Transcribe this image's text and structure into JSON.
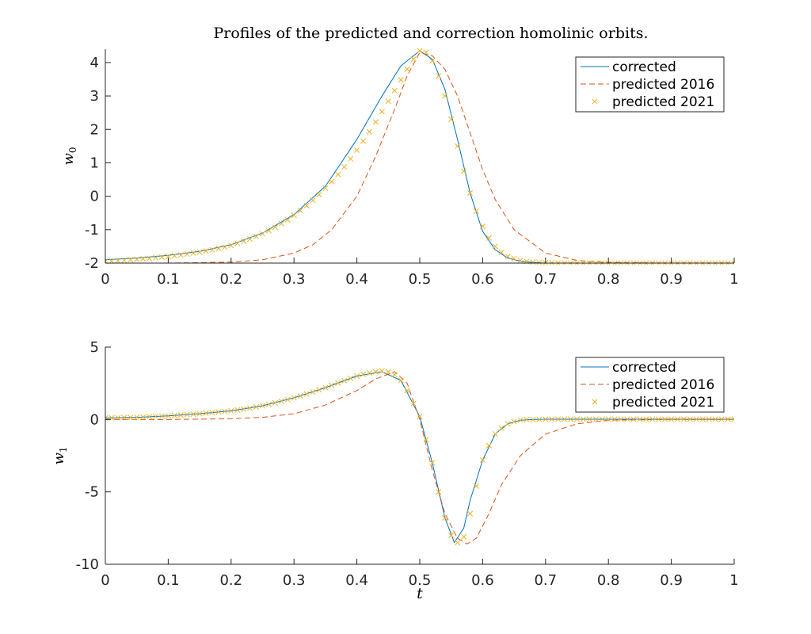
{
  "title": "Profiles of the predicted and correction homolinic orbits.",
  "colors": {
    "corrected": "#0072BD",
    "predicted_2016": "#D95319",
    "predicted_2021": "#EDB120",
    "axis": "#262626"
  },
  "chart_data": [
    {
      "type": "line",
      "ylabel": "w0",
      "xlabel": "",
      "xlim": [
        0,
        1
      ],
      "ylim": [
        -2,
        4.4
      ],
      "xticks": [
        "0",
        "0.1",
        "0.2",
        "0.3",
        "0.4",
        "0.5",
        "0.6",
        "0.7",
        "0.8",
        "0.9",
        "1"
      ],
      "yticks": [
        "-2",
        "-1",
        "0",
        "1",
        "2",
        "3",
        "4"
      ],
      "legend_position": "top-right",
      "series": [
        {
          "name": "corrected",
          "style": "solid",
          "x": [
            0,
            0.05,
            0.1,
            0.15,
            0.2,
            0.25,
            0.3,
            0.35,
            0.4,
            0.44,
            0.47,
            0.5,
            0.52,
            0.54,
            0.56,
            0.58,
            0.6,
            0.62,
            0.64,
            0.66,
            0.68,
            0.7,
            0.75,
            0.8,
            0.9,
            1.0
          ],
          "y": [
            -1.9,
            -1.85,
            -1.77,
            -1.65,
            -1.45,
            -1.1,
            -0.55,
            0.3,
            1.7,
            3.0,
            3.9,
            4.35,
            4.1,
            3.2,
            1.7,
            0.1,
            -1.05,
            -1.6,
            -1.85,
            -1.94,
            -1.98,
            -2.0,
            -2.0,
            -2.0,
            -2.0,
            -2.0
          ]
        },
        {
          "name": "predicted 2016",
          "style": "dashed",
          "x": [
            0,
            0.1,
            0.2,
            0.25,
            0.3,
            0.33,
            0.36,
            0.4,
            0.43,
            0.46,
            0.48,
            0.5,
            0.52,
            0.54,
            0.56,
            0.58,
            0.6,
            0.62,
            0.65,
            0.7,
            0.75,
            0.8,
            0.9,
            1.0
          ],
          "y": [
            -2.0,
            -2.0,
            -1.97,
            -1.9,
            -1.7,
            -1.45,
            -1.0,
            0.0,
            1.2,
            2.6,
            3.6,
            4.3,
            4.2,
            3.8,
            3.0,
            1.9,
            0.8,
            -0.1,
            -1.0,
            -1.7,
            -1.92,
            -1.98,
            -2.0,
            -2.0
          ]
        },
        {
          "name": "predicted 2021",
          "style": "markers",
          "x": [
            0,
            0.01,
            0.02,
            0.03,
            0.04,
            0.05,
            0.06,
            0.07,
            0.08,
            0.09,
            0.1,
            0.11,
            0.12,
            0.13,
            0.14,
            0.15,
            0.16,
            0.17,
            0.18,
            0.19,
            0.2,
            0.21,
            0.22,
            0.23,
            0.24,
            0.25,
            0.26,
            0.27,
            0.28,
            0.29,
            0.3,
            0.31,
            0.32,
            0.33,
            0.34,
            0.35,
            0.36,
            0.37,
            0.38,
            0.39,
            0.4,
            0.41,
            0.42,
            0.43,
            0.44,
            0.45,
            0.46,
            0.47,
            0.48,
            0.49,
            0.5,
            0.51,
            0.52,
            0.53,
            0.54,
            0.55,
            0.56,
            0.57,
            0.58,
            0.59,
            0.6,
            0.61,
            0.62,
            0.63,
            0.64,
            0.65,
            0.66,
            0.67,
            0.68,
            0.69,
            0.7,
            0.71,
            0.72,
            0.73,
            0.74,
            0.75,
            0.76,
            0.77,
            0.78,
            0.79,
            0.8,
            0.81,
            0.82,
            0.83,
            0.84,
            0.85,
            0.86,
            0.87,
            0.88,
            0.89,
            0.9,
            0.91,
            0.92,
            0.93,
            0.94,
            0.95,
            0.96,
            0.97,
            0.98,
            0.99,
            1.0
          ],
          "y": [
            -1.95,
            -1.94,
            -1.93,
            -1.92,
            -1.9,
            -1.89,
            -1.87,
            -1.86,
            -1.84,
            -1.82,
            -1.8,
            -1.78,
            -1.76,
            -1.73,
            -1.7,
            -1.67,
            -1.64,
            -1.6,
            -1.56,
            -1.52,
            -1.47,
            -1.41,
            -1.35,
            -1.28,
            -1.2,
            -1.12,
            -1.03,
            -0.93,
            -0.82,
            -0.7,
            -0.57,
            -0.43,
            -0.28,
            -0.12,
            0.05,
            0.24,
            0.44,
            0.65,
            0.88,
            1.12,
            1.38,
            1.65,
            1.93,
            2.22,
            2.53,
            2.84,
            3.16,
            3.48,
            3.8,
            4.1,
            4.35,
            4.3,
            4.05,
            3.6,
            3.0,
            2.3,
            1.5,
            0.75,
            0.1,
            -0.45,
            -0.9,
            -1.25,
            -1.5,
            -1.68,
            -1.8,
            -1.87,
            -1.92,
            -1.95,
            -1.97,
            -1.98,
            -1.99,
            -1.99,
            -2.0,
            -2.0,
            -2.0,
            -2.0,
            -2.0,
            -2.0,
            -2.0,
            -2.0,
            -2.0,
            -2.0,
            -2.0,
            -2.0,
            -2.0,
            -2.0,
            -2.0,
            -2.0,
            -2.0,
            -2.0,
            -2.0,
            -2.0,
            -2.0,
            -2.0,
            -2.0,
            -2.0,
            -2.0,
            -2.0,
            -2.0,
            -2.0,
            -2.0
          ]
        }
      ]
    },
    {
      "type": "line",
      "ylabel": "w1",
      "xlabel": "t",
      "xlim": [
        0,
        1
      ],
      "ylim": [
        -10,
        5
      ],
      "xticks": [
        "0",
        "0.1",
        "0.2",
        "0.3",
        "0.4",
        "0.5",
        "0.6",
        "0.7",
        "0.8",
        "0.9",
        "1"
      ],
      "yticks": [
        "5",
        "0",
        "-5",
        "-10"
      ],
      "legend_position": "top-right",
      "series": [
        {
          "name": "corrected",
          "style": "solid",
          "x": [
            0,
            0.05,
            0.1,
            0.15,
            0.2,
            0.25,
            0.3,
            0.35,
            0.4,
            0.44,
            0.47,
            0.5,
            0.52,
            0.54,
            0.555,
            0.57,
            0.58,
            0.6,
            0.62,
            0.64,
            0.66,
            0.68,
            0.7,
            0.75,
            0.8,
            0.9,
            1.0
          ],
          "y": [
            0.1,
            0.15,
            0.25,
            0.4,
            0.6,
            0.95,
            1.5,
            2.2,
            3.0,
            3.3,
            2.7,
            0.2,
            -3.0,
            -6.8,
            -8.5,
            -7.5,
            -5.6,
            -2.8,
            -1.0,
            -0.3,
            -0.05,
            0.0,
            0.02,
            0.02,
            0.02,
            0.02,
            0.02
          ]
        },
        {
          "name": "predicted 2016",
          "style": "dashed",
          "x": [
            0,
            0.1,
            0.2,
            0.25,
            0.3,
            0.35,
            0.4,
            0.43,
            0.46,
            0.48,
            0.5,
            0.52,
            0.54,
            0.56,
            0.575,
            0.59,
            0.61,
            0.63,
            0.66,
            0.7,
            0.75,
            0.8,
            0.9,
            1.0
          ],
          "y": [
            0.0,
            0.0,
            0.05,
            0.15,
            0.4,
            1.0,
            2.0,
            2.8,
            3.3,
            2.5,
            0.0,
            -3.5,
            -6.5,
            -8.2,
            -8.6,
            -8.2,
            -6.5,
            -4.5,
            -2.5,
            -1.0,
            -0.3,
            -0.05,
            0.0,
            0.0
          ]
        },
        {
          "name": "predicted 2021",
          "style": "markers",
          "x": [
            0,
            0.01,
            0.02,
            0.03,
            0.04,
            0.05,
            0.06,
            0.07,
            0.08,
            0.09,
            0.1,
            0.11,
            0.12,
            0.13,
            0.14,
            0.15,
            0.16,
            0.17,
            0.18,
            0.19,
            0.2,
            0.21,
            0.22,
            0.23,
            0.24,
            0.25,
            0.26,
            0.27,
            0.28,
            0.29,
            0.3,
            0.31,
            0.32,
            0.33,
            0.34,
            0.35,
            0.36,
            0.37,
            0.38,
            0.39,
            0.4,
            0.41,
            0.42,
            0.43,
            0.44,
            0.45,
            0.46,
            0.47,
            0.48,
            0.49,
            0.5,
            0.51,
            0.52,
            0.53,
            0.54,
            0.55,
            0.56,
            0.57,
            0.58,
            0.59,
            0.6,
            0.61,
            0.62,
            0.63,
            0.64,
            0.65,
            0.66,
            0.67,
            0.68,
            0.69,
            0.7,
            0.71,
            0.72,
            0.73,
            0.74,
            0.75,
            0.76,
            0.77,
            0.78,
            0.79,
            0.8,
            0.81,
            0.82,
            0.83,
            0.84,
            0.85,
            0.86,
            0.87,
            0.88,
            0.89,
            0.9,
            0.91,
            0.92,
            0.93,
            0.94,
            0.95,
            0.96,
            0.97,
            0.98,
            0.99,
            1.0
          ],
          "y": [
            0.1,
            0.11,
            0.12,
            0.13,
            0.14,
            0.15,
            0.17,
            0.19,
            0.21,
            0.23,
            0.25,
            0.28,
            0.31,
            0.34,
            0.37,
            0.4,
            0.44,
            0.48,
            0.52,
            0.56,
            0.6,
            0.66,
            0.72,
            0.79,
            0.87,
            0.95,
            1.05,
            1.15,
            1.26,
            1.38,
            1.5,
            1.63,
            1.76,
            1.9,
            2.05,
            2.2,
            2.36,
            2.52,
            2.68,
            2.84,
            3.0,
            3.12,
            3.22,
            3.3,
            3.35,
            3.3,
            3.1,
            2.7,
            2.0,
            1.1,
            0.2,
            -1.4,
            -3.0,
            -5.0,
            -6.8,
            -8.0,
            -8.5,
            -8.1,
            -6.5,
            -4.6,
            -2.8,
            -1.8,
            -1.0,
            -0.6,
            -0.3,
            -0.15,
            -0.05,
            0.0,
            0.0,
            0.01,
            0.02,
            0.02,
            0.02,
            0.02,
            0.02,
            0.02,
            0.02,
            0.02,
            0.02,
            0.02,
            0.02,
            0.02,
            0.02,
            0.02,
            0.02,
            0.02,
            0.02,
            0.02,
            0.02,
            0.02,
            0.02,
            0.02,
            0.02,
            0.02,
            0.02,
            0.02,
            0.02,
            0.02,
            0.02,
            0.02,
            0.02
          ]
        }
      ]
    }
  ]
}
